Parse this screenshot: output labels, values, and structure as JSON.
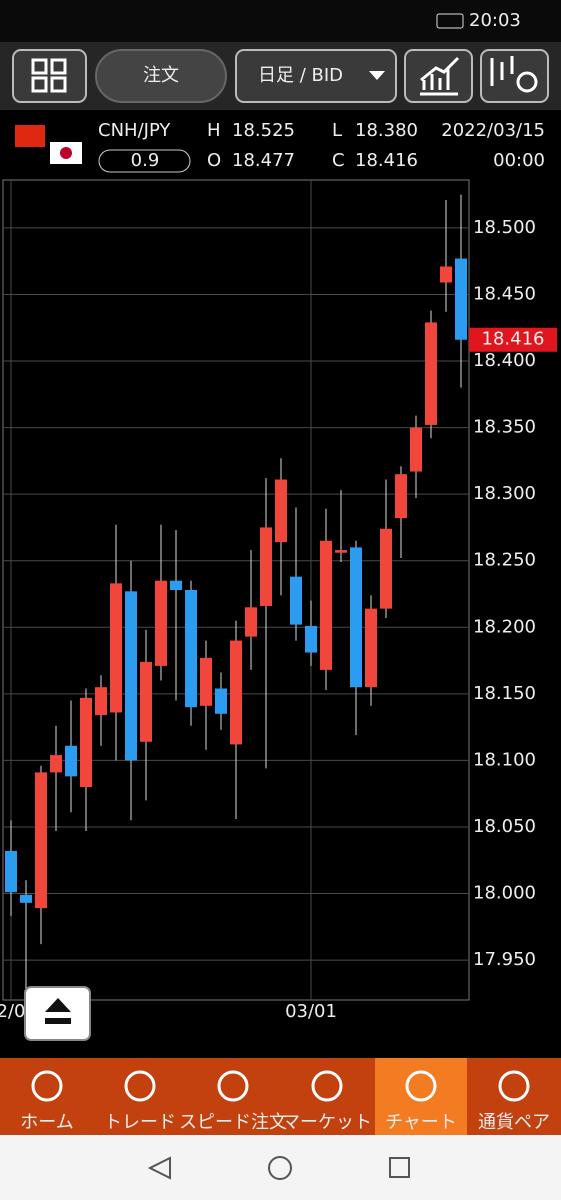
{
  "status_bar": {
    "time": "20:03"
  },
  "toolbar": {
    "order_button": "注文",
    "timeframe": "日足 / BID"
  },
  "quote": {
    "pair": "CNH/JPY",
    "spread": "0.9",
    "high_label": "H",
    "high": "18.525",
    "low_label": "L",
    "low": "18.380",
    "open_label": "O",
    "open": "18.477",
    "close_label": "C",
    "close": "18.416",
    "date": "2022/03/15",
    "time": "00:00"
  },
  "chart_data": {
    "type": "candlestick",
    "categories": [
      "2/0",
      null,
      null,
      null,
      null,
      null,
      null,
      null,
      null,
      null,
      null,
      null,
      null,
      null,
      null,
      null,
      null,
      null,
      null,
      null,
      "03/01",
      null,
      null,
      null,
      null,
      null,
      null,
      null,
      null,
      null,
      null
    ],
    "open": [
      18.032,
      17.999,
      17.989,
      18.091,
      18.111,
      18.08,
      18.134,
      18.136,
      18.227,
      18.114,
      18.171,
      18.235,
      18.228,
      18.141,
      18.154,
      18.112,
      18.193,
      18.216,
      18.264,
      18.238,
      18.201,
      18.168,
      18.256,
      18.26,
      18.155,
      18.214,
      18.282,
      18.317,
      18.352,
      18.459,
      18.477
    ],
    "high": [
      18.055,
      18.01,
      18.096,
      18.126,
      18.145,
      18.154,
      18.164,
      18.277,
      18.25,
      18.198,
      18.277,
      18.273,
      18.235,
      18.19,
      18.166,
      18.205,
      18.258,
      18.312,
      18.327,
      18.29,
      18.22,
      18.289,
      18.303,
      18.265,
      18.224,
      18.311,
      18.321,
      18.359,
      18.438,
      18.521,
      18.525
    ],
    "low": [
      17.983,
      17.927,
      17.962,
      18.047,
      18.061,
      18.047,
      18.111,
      18.1,
      18.055,
      18.07,
      18.16,
      18.145,
      18.126,
      18.108,
      18.123,
      18.056,
      18.168,
      18.094,
      18.224,
      18.19,
      18.171,
      18.153,
      18.249,
      18.119,
      18.141,
      18.207,
      18.252,
      18.297,
      18.342,
      18.437,
      18.38
    ],
    "close": [
      18.001,
      17.993,
      18.091,
      18.104,
      18.088,
      18.147,
      18.155,
      18.233,
      18.1,
      18.174,
      18.235,
      18.228,
      18.14,
      18.177,
      18.135,
      18.19,
      18.215,
      18.275,
      18.311,
      18.202,
      18.181,
      18.265,
      18.258,
      18.155,
      18.214,
      18.274,
      18.315,
      18.35,
      18.429,
      18.471,
      18.416
    ],
    "up_color": "#f0463c",
    "down_color": "#2c9cf0",
    "ylim": [
      17.92,
      18.536
    ],
    "yticks": [
      {
        "value": 17.95,
        "label": "17.950"
      },
      {
        "value": 18.0,
        "label": "18.000"
      },
      {
        "value": 18.05,
        "label": "18.050"
      },
      {
        "value": 18.1,
        "label": "18.100"
      },
      {
        "value": 18.15,
        "label": "18.150"
      },
      {
        "value": 18.2,
        "label": "18.200"
      },
      {
        "value": 18.25,
        "label": "18.250"
      },
      {
        "value": 18.3,
        "label": "18.300"
      },
      {
        "value": 18.35,
        "label": "18.350"
      },
      {
        "value": 18.4,
        "label": "18.400"
      },
      {
        "value": 18.45,
        "label": "18.450"
      },
      {
        "value": 18.5,
        "label": "18.500"
      }
    ],
    "last_price": 18.416,
    "grid": true
  },
  "nav": {
    "items": [
      "ホーム",
      "トレード",
      "スピード注文",
      "マーケット",
      "チャート",
      "通貨ペア"
    ]
  }
}
